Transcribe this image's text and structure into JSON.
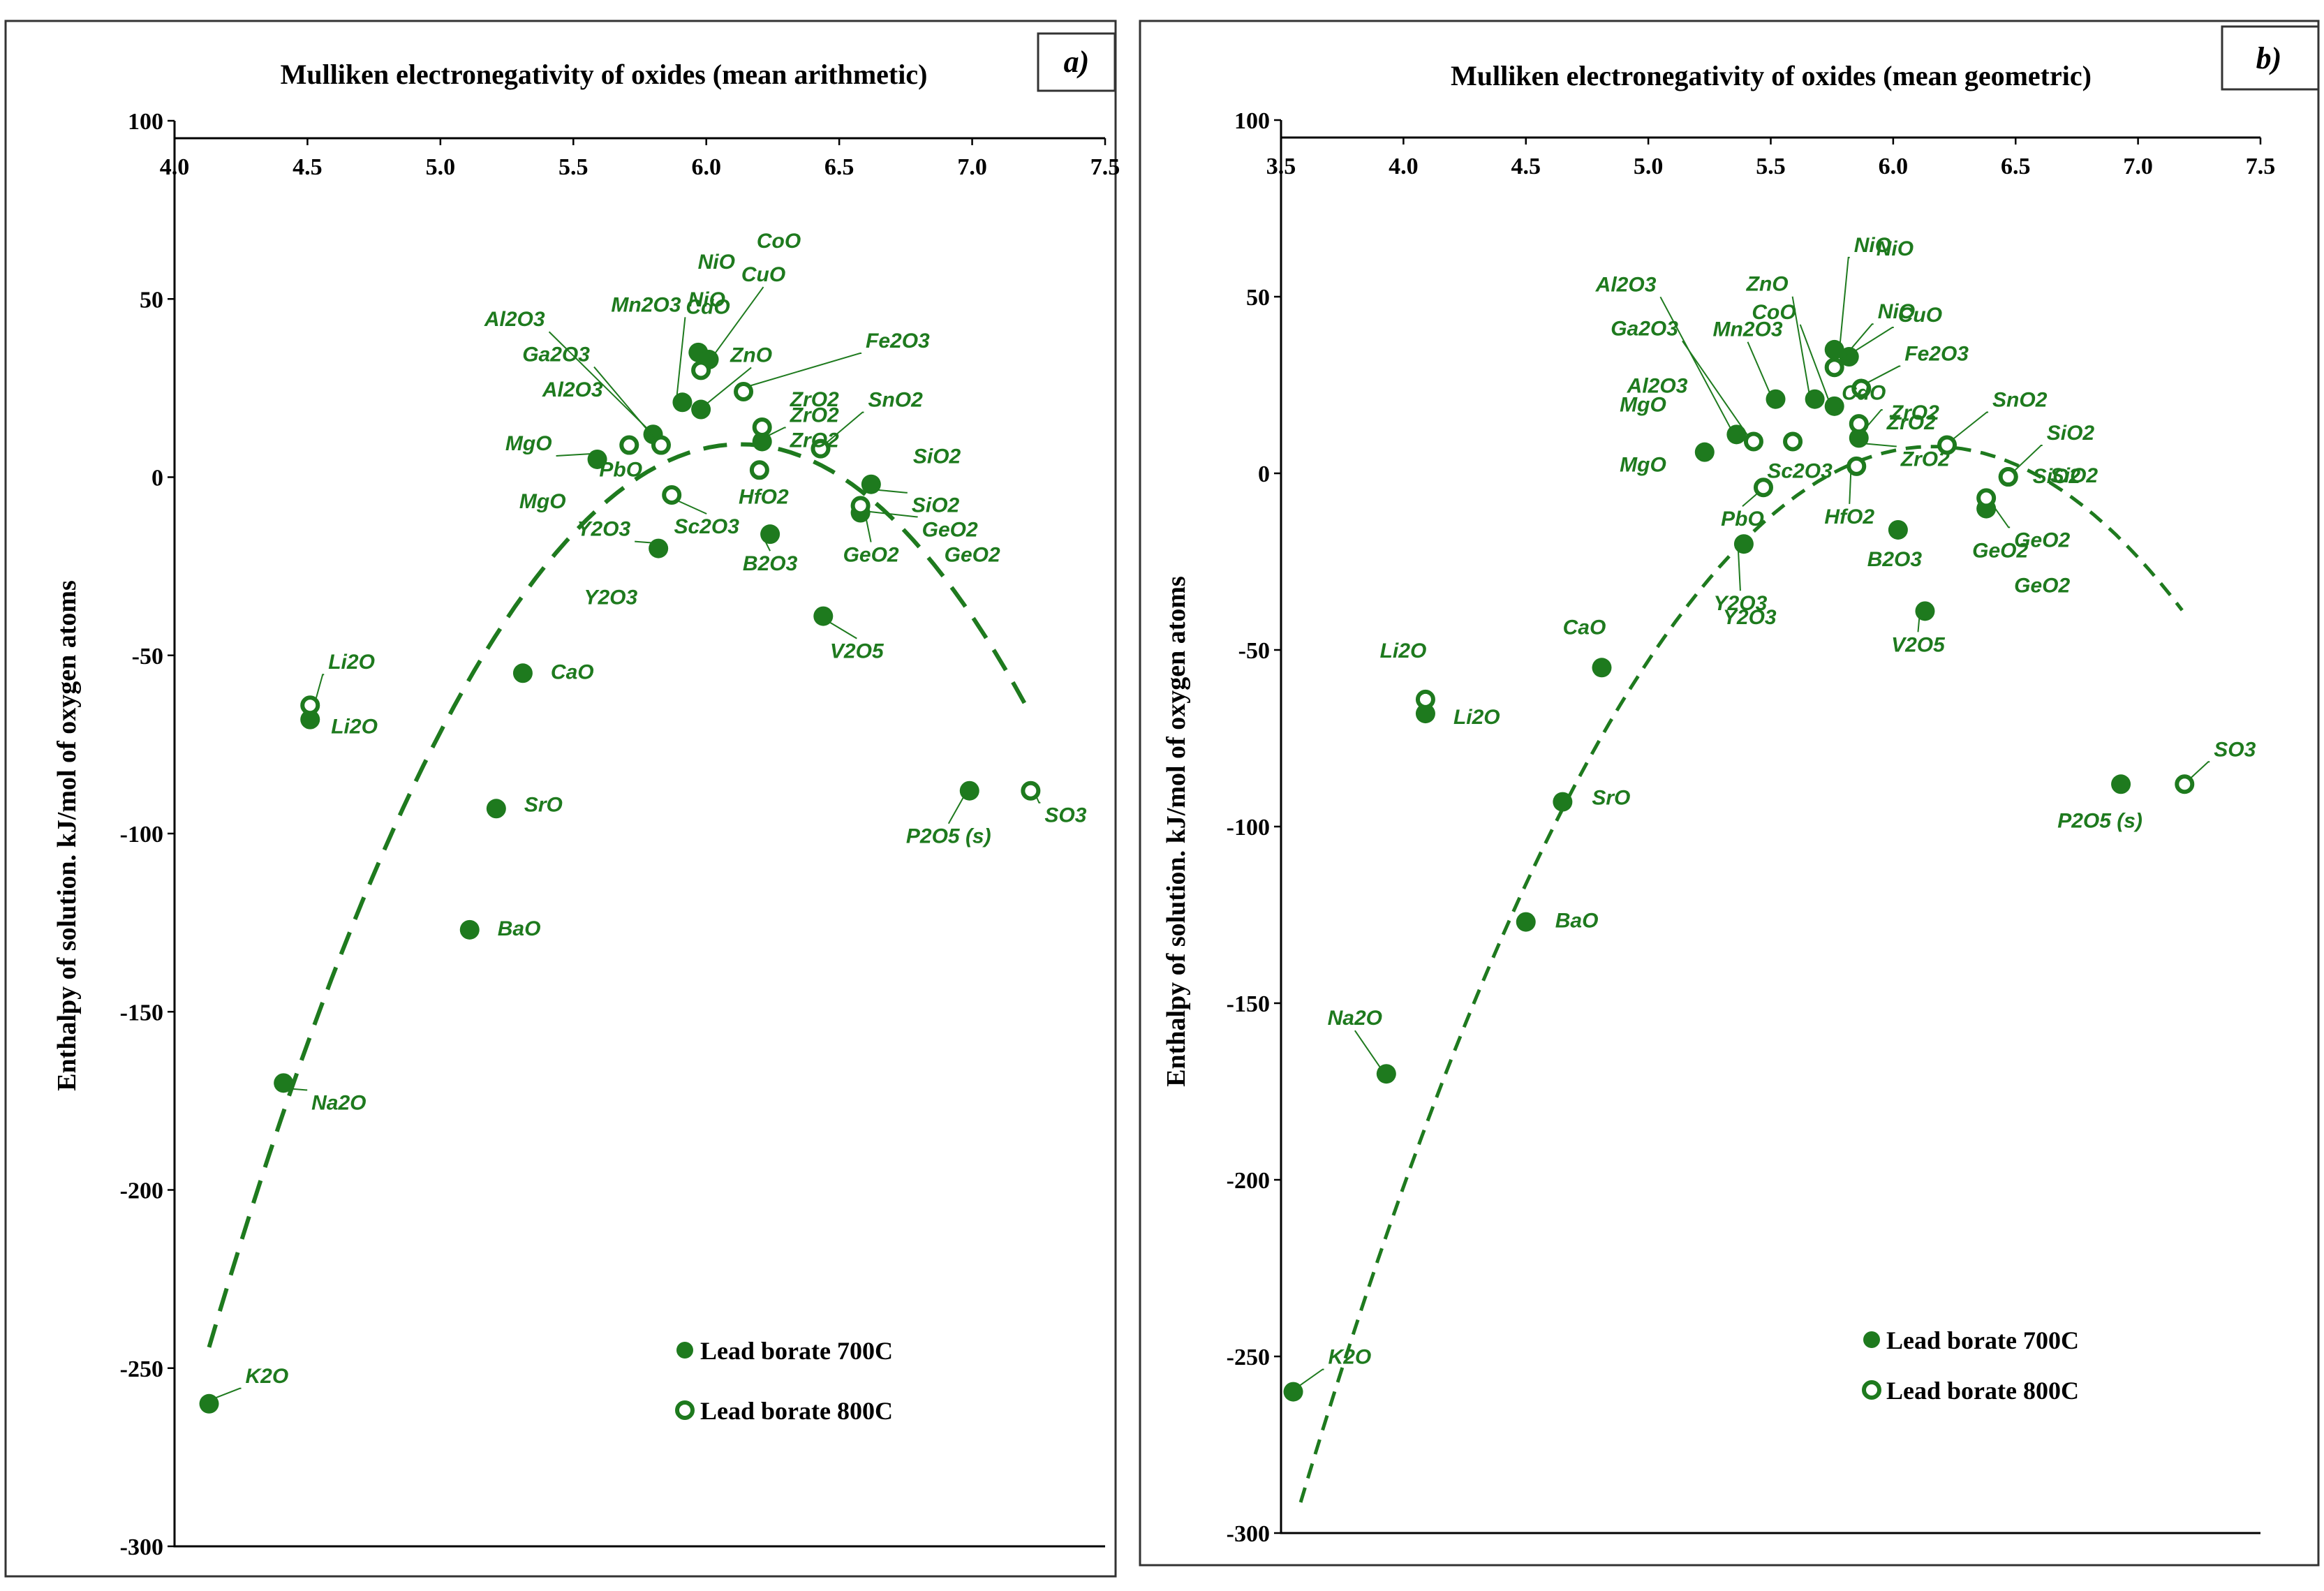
{
  "colors": {
    "marker": "#1e7a1e",
    "axis": "#000000"
  },
  "legend": {
    "filled": "Lead borate 700C",
    "open": "Lead borate 800C"
  },
  "chart_data": [
    {
      "type": "scatter",
      "panel": "a)",
      "title": "Mulliken electronegativity of oxides (mean arithmetic)",
      "xlabel": "",
      "ylabel": "Enthalpy of solution. kJ/mol of oxygen atoms",
      "xlim": [
        4.0,
        7.5
      ],
      "ylim": [
        -300,
        100
      ],
      "x_axis_position": "top",
      "xticks": [
        "4.0",
        "4.5",
        "5.0",
        "5.5",
        "6.0",
        "6.5",
        "7.0",
        "7.5"
      ],
      "yticks": [
        "100",
        "50",
        "0",
        "-50",
        "-100",
        "-150",
        "-200",
        "-250",
        "-300"
      ],
      "fit": {
        "type": "quadratic",
        "a": -63.5,
        "b": 778.2,
        "c": -2375,
        "x_range": [
          4.13,
          7.2
        ],
        "style": "dashed"
      },
      "series": [
        {
          "name": "Lead borate 700C",
          "marker": "filled",
          "points": [
            {
              "label": "K2O",
              "x": 4.13,
              "y": -260
            },
            {
              "label": "Na2O",
              "x": 4.41,
              "y": -170
            },
            {
              "label": "Li2O",
              "x": 4.51,
              "y": -68
            },
            {
              "label": "BaO",
              "x": 5.11,
              "y": -127
            },
            {
              "label": "SrO",
              "x": 5.21,
              "y": -93
            },
            {
              "label": "CaO",
              "x": 5.31,
              "y": -55
            },
            {
              "label": "MgO",
              "x": 5.59,
              "y": 5
            },
            {
              "label": "Al2O3",
              "x": 5.8,
              "y": 12
            },
            {
              "label": "Y2O3",
              "x": 5.82,
              "y": -20
            },
            {
              "label": "Mn2O3",
              "x": 5.91,
              "y": 21
            },
            {
              "label": "NiO",
              "x": 5.97,
              "y": 35
            },
            {
              "label": "CuO",
              "x": 6.01,
              "y": 33
            },
            {
              "label": "ZnO",
              "x": 5.98,
              "y": 19
            },
            {
              "label": "ZrO2",
              "x": 6.21,
              "y": 10
            },
            {
              "label": "B2O3",
              "x": 6.24,
              "y": -16
            },
            {
              "label": "V2O5",
              "x": 6.44,
              "y": -39
            },
            {
              "label": "GeO2",
              "x": 6.58,
              "y": -10
            },
            {
              "label": "SiO2",
              "x": 6.62,
              "y": -2
            },
            {
              "label": "P2O5 (s)",
              "x": 6.99,
              "y": -88
            }
          ]
        },
        {
          "name": "Lead borate 800C",
          "marker": "open",
          "points": [
            {
              "label": "Li2O",
              "x": 4.51,
              "y": -64
            },
            {
              "label": "PbO",
              "x": 5.71,
              "y": 9
            },
            {
              "label": "Ga2O3",
              "x": 5.83,
              "y": 9
            },
            {
              "label": "Sc2O3",
              "x": 5.87,
              "y": -5
            },
            {
              "label": "CdO",
              "x": 5.98,
              "y": 30
            },
            {
              "label": "Fe2O3",
              "x": 6.14,
              "y": 24
            },
            {
              "label": "ZrO2",
              "x": 6.21,
              "y": 14
            },
            {
              "label": "HfO2",
              "x": 6.2,
              "y": 2
            },
            {
              "label": "SnO2",
              "x": 6.43,
              "y": 8
            },
            {
              "label": "GeO2",
              "x": 6.58,
              "y": -8
            },
            {
              "label": "SO3",
              "x": 7.22,
              "y": -88
            }
          ]
        }
      ],
      "annotations": [
        {
          "text": "K2O",
          "for": "K2O"
        },
        {
          "text": "Na2O",
          "for": "Na2O"
        },
        {
          "text": "Li2O",
          "for": "Li2O-800"
        },
        {
          "text": "Li2O",
          "for": "Li2O-700"
        },
        {
          "text": "BaO",
          "for": "BaO"
        },
        {
          "text": "SrO",
          "for": "SrO"
        },
        {
          "text": "CaO",
          "for": "CaO"
        },
        {
          "text": "MgO",
          "for": "MgO-top"
        },
        {
          "text": "MgO",
          "for": "MgO-bottom"
        },
        {
          "text": "Al2O3",
          "for": "Al2O3-700"
        },
        {
          "text": "Ga2O3",
          "for": "Ga2O3"
        },
        {
          "text": "Al2O3",
          "for": "Al2O3-800"
        },
        {
          "text": "PbO",
          "for": "PbO"
        },
        {
          "text": "Mn2O3",
          "for": "Mn2O3"
        },
        {
          "text": "NiO",
          "for": "NiO-700"
        },
        {
          "text": "NiO",
          "for": "NiO-800"
        },
        {
          "text": "CoO",
          "for": "CoO"
        },
        {
          "text": "CuO",
          "for": "CuO"
        },
        {
          "text": "ZnO",
          "for": "ZnO"
        },
        {
          "text": "CdO",
          "for": "CdO"
        },
        {
          "text": "Fe2O3",
          "for": "Fe2O3"
        },
        {
          "text": "ZrO2",
          "for": "ZrO2-800"
        },
        {
          "text": "ZrO2",
          "for": "ZrO2-700"
        },
        {
          "text": "HfO2",
          "for": "HfO2"
        },
        {
          "text": "SnO2",
          "for": "SnO2"
        },
        {
          "text": "SiO2",
          "for": "SiO2-a"
        },
        {
          "text": "SiO2",
          "for": "SiO2-b"
        },
        {
          "text": "Sc2O3",
          "for": "Sc2O3"
        },
        {
          "text": "Y2O3",
          "for": "Y2O3-a"
        },
        {
          "text": "Y2O3",
          "for": "Y2O3-b"
        },
        {
          "text": "B2O3",
          "for": "B2O3"
        },
        {
          "text": "GeO2",
          "for": "GeO2-a"
        },
        {
          "text": "GeO2",
          "for": "GeO2-b"
        },
        {
          "text": "V2O5",
          "for": "V2O5"
        },
        {
          "text": "P2O5 (s)",
          "for": "P2O5"
        },
        {
          "text": "SO3",
          "for": "SO3"
        }
      ]
    },
    {
      "type": "scatter",
      "panel": "b)",
      "title": "Mulliken electronegativity of oxides (mean geometric)",
      "xlabel": "",
      "ylabel": "Enthalpy of solution. kJ/mol of oxygen atoms",
      "xlim": [
        3.5,
        7.5
      ],
      "ylim": [
        -300,
        100
      ],
      "x_axis_position": "top",
      "xticks": [
        "3.5",
        "4.0",
        "4.5",
        "5.0",
        "5.5",
        "6.0",
        "6.5",
        "7.0",
        "7.5"
      ],
      "yticks": [
        "100",
        "50",
        "0",
        "-50",
        "-100",
        "-150",
        "-200",
        "-250",
        "-300"
      ],
      "fit": {
        "type": "quadratic",
        "a": -44.8,
        "b": 552.2,
        "c": -1694,
        "x_range": [
          3.58,
          7.18
        ],
        "style": "dashed"
      },
      "series": [
        {
          "name": "Lead borate 700C",
          "marker": "filled",
          "points": [
            {
              "label": "K2O",
              "x": 3.55,
              "y": -260
            },
            {
              "label": "Na2O",
              "x": 3.93,
              "y": -170
            },
            {
              "label": "Li2O",
              "x": 4.09,
              "y": -68
            },
            {
              "label": "BaO",
              "x": 4.5,
              "y": -127
            },
            {
              "label": "SrO",
              "x": 4.65,
              "y": -93
            },
            {
              "label": "CaO",
              "x": 4.81,
              "y": -55
            },
            {
              "label": "MgO",
              "x": 5.23,
              "y": 6
            },
            {
              "label": "Y2O3",
              "x": 5.39,
              "y": -20
            },
            {
              "label": "Al2O3",
              "x": 5.36,
              "y": 11
            },
            {
              "label": "Mn2O3",
              "x": 5.52,
              "y": 21
            },
            {
              "label": "ZnO",
              "x": 5.68,
              "y": 21
            },
            {
              "label": "CoO",
              "x": 5.76,
              "y": 19
            },
            {
              "label": "NiO",
              "x": 5.76,
              "y": 35
            },
            {
              "label": "CuO",
              "x": 5.82,
              "y": 33
            },
            {
              "label": "ZrO2",
              "x": 5.86,
              "y": 10
            },
            {
              "label": "B2O3",
              "x": 6.02,
              "y": -16
            },
            {
              "label": "V2O5",
              "x": 6.13,
              "y": -39
            },
            {
              "label": "GeO2",
              "x": 6.38,
              "y": -10
            },
            {
              "label": "SiO2",
              "x": 6.47,
              "y": -1
            },
            {
              "label": "P2O5 (s)",
              "x": 6.93,
              "y": -88
            }
          ]
        },
        {
          "name": "Lead borate 800C",
          "marker": "open",
          "points": [
            {
              "label": "Li2O",
              "x": 4.09,
              "y": -64
            },
            {
              "label": "PbO",
              "x": 5.47,
              "y": -4
            },
            {
              "label": "Ga2O3",
              "x": 5.43,
              "y": 9
            },
            {
              "label": "Sc2O3",
              "x": 5.59,
              "y": 9
            },
            {
              "label": "NiO",
              "x": 5.76,
              "y": 30
            },
            {
              "label": "Fe2O3",
              "x": 5.87,
              "y": 24
            },
            {
              "label": "ZrO2",
              "x": 5.86,
              "y": 14
            },
            {
              "label": "HfO2",
              "x": 5.85,
              "y": 2
            },
            {
              "label": "SnO2",
              "x": 6.22,
              "y": 8
            },
            {
              "label": "GeO2",
              "x": 6.38,
              "y": -7
            },
            {
              "label": "SiO2",
              "x": 6.47,
              "y": -1
            },
            {
              "label": "SO3",
              "x": 7.19,
              "y": -88
            }
          ]
        }
      ],
      "annotations": [
        {
          "text": "K2O",
          "for": "K2O"
        },
        {
          "text": "Na2O",
          "for": "Na2O"
        },
        {
          "text": "Li2O",
          "for": "Li2O-800"
        },
        {
          "text": "Li2O",
          "for": "Li2O-700"
        },
        {
          "text": "CaO",
          "for": "CaO"
        },
        {
          "text": "SrO",
          "for": "SrO"
        },
        {
          "text": "BaO",
          "for": "BaO"
        },
        {
          "text": "Al2O3",
          "for": "Al2O3-top"
        },
        {
          "text": "CoO",
          "for": "CoO"
        },
        {
          "text": "ZnO",
          "for": "ZnO"
        },
        {
          "text": "NiO",
          "for": "NiO-top"
        },
        {
          "text": "NiO",
          "for": "NiO-second"
        },
        {
          "text": "CuO",
          "for": "CuO"
        },
        {
          "text": "Mn2O3",
          "for": "Mn2O3"
        },
        {
          "text": "Fe2O3",
          "for": "Fe2O3"
        },
        {
          "text": "Ga2O3",
          "for": "Ga2O3"
        },
        {
          "text": "Al2O3",
          "for": "Al2O3-mid"
        },
        {
          "text": "MgO",
          "for": "MgO-top"
        },
        {
          "text": "MgO",
          "for": "MgO-bottom"
        },
        {
          "text": "CdO",
          "for": "CdO"
        },
        {
          "text": "ZrO2",
          "for": "ZrO2-800"
        },
        {
          "text": "SnO2",
          "for": "SnO2"
        },
        {
          "text": "SiO2",
          "for": "SiO2-a"
        },
        {
          "text": "SiO2",
          "for": "SiO2-b"
        },
        {
          "text": "Sc2O3",
          "for": "Sc2O3"
        },
        {
          "text": "ZrO2",
          "for": "ZrO2-700"
        },
        {
          "text": "PbO",
          "for": "PbO"
        },
        {
          "text": "HfO2",
          "for": "HfO2"
        },
        {
          "text": "B2O3",
          "for": "B2O3"
        },
        {
          "text": "GeO2",
          "for": "GeO2-a"
        },
        {
          "text": "GeO2",
          "for": "GeO2-b"
        },
        {
          "text": "Y2O3",
          "for": "Y2O3-a"
        },
        {
          "text": "Y2O3",
          "for": "Y2O3-b"
        },
        {
          "text": "V2O5",
          "for": "V2O5"
        },
        {
          "text": "SO3",
          "for": "SO3"
        },
        {
          "text": "P2O5 (s)",
          "for": "P2O5"
        }
      ]
    }
  ]
}
